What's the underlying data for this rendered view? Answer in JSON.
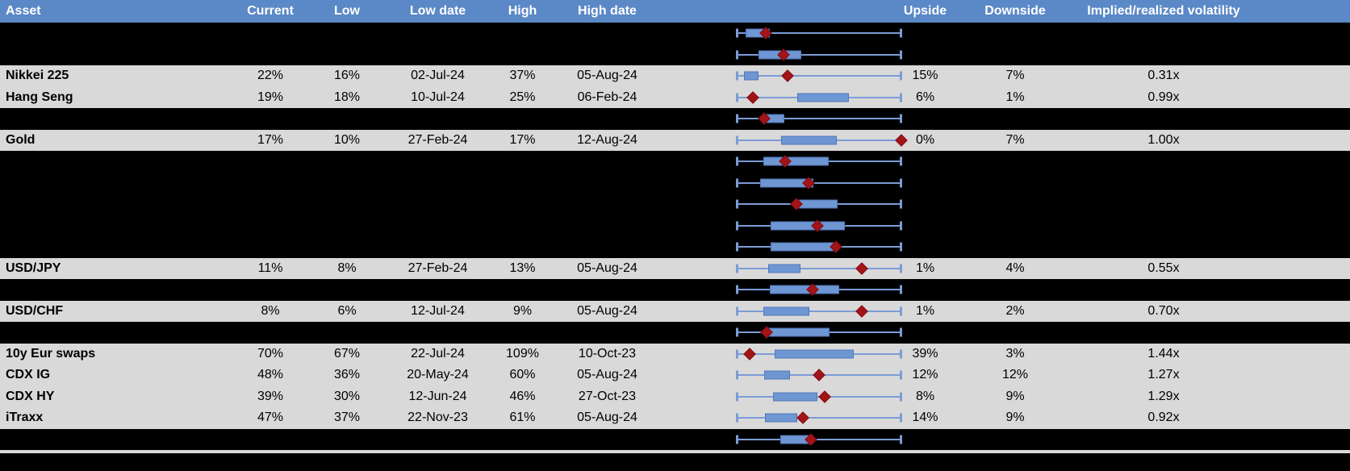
{
  "columns": {
    "asset": "Asset",
    "current": "Current",
    "low": "Low",
    "low_date": "Low date",
    "high": "High",
    "high_date": "High date",
    "upside": "Upside",
    "downside": "Downside",
    "ratio": "Implied/realized volatility"
  },
  "colors": {
    "header_bg": "#5B88C6",
    "header_text": "#FFFFFF",
    "row_gray": "#D9D9D9",
    "row_black": "#000000",
    "box_fill": "#6E96D3",
    "whisker": "#7B9CD6",
    "diamond": "#A31419"
  },
  "chart_data": {
    "type": "table",
    "columns": [
      "Asset",
      "Current",
      "Low",
      "Low date",
      "High",
      "High date",
      "range boxplot",
      "Upside",
      "Downside",
      "Implied/realized volatility"
    ],
    "boxplot_note": "box and diamond positions are fractions 0-1 of each row's low-to-high whisker span; diamond = current level",
    "rows": [
      {
        "kind": "chart",
        "box": [
          0.055,
          0.201
        ],
        "diamond": 0.176
      },
      {
        "kind": "chart",
        "box": [
          0.132,
          0.394
        ],
        "diamond": 0.284
      },
      {
        "kind": "data",
        "asset": "Nikkei 225",
        "current": "22%",
        "low": "16%",
        "low_date": "02-Jul-24",
        "high": "37%",
        "high_date": "05-Aug-24",
        "upside": "15%",
        "downside": "7%",
        "ratio": "0.31x",
        "box": [
          0.043,
          0.132
        ],
        "diamond": 0.307
      },
      {
        "kind": "data",
        "asset": "Hang Seng",
        "current": "19%",
        "low": "18%",
        "low_date": "10-Jul-24",
        "high": "25%",
        "high_date": "06-Feb-24",
        "upside": "6%",
        "downside": "1%",
        "ratio": "0.99x",
        "box": [
          0.369,
          0.68
        ],
        "diamond": 0.097
      },
      {
        "kind": "chart",
        "box": [
          0.165,
          0.288
        ],
        "diamond": 0.165
      },
      {
        "kind": "data",
        "asset": "Gold",
        "current": "17%",
        "low": "10%",
        "low_date": "27-Feb-24",
        "high": "17%",
        "high_date": "12-Aug-24",
        "upside": "0%",
        "downside": "7%",
        "ratio": "1.00x",
        "box": [
          0.271,
          0.606
        ],
        "diamond": 1.0
      },
      {
        "kind": "chart",
        "box": [
          0.16,
          0.557
        ],
        "diamond": 0.293
      },
      {
        "kind": "chart",
        "box": [
          0.141,
          0.467
        ],
        "diamond": 0.435
      },
      {
        "kind": "chart",
        "box": [
          0.378,
          0.611
        ],
        "diamond": 0.364
      },
      {
        "kind": "chart",
        "box": [
          0.206,
          0.655
        ],
        "diamond": 0.492
      },
      {
        "kind": "chart",
        "box": [
          0.206,
          0.614
        ],
        "diamond": 0.603
      },
      {
        "kind": "data",
        "asset": "USD/JPY",
        "current": "11%",
        "low": "8%",
        "low_date": "27-Feb-24",
        "high": "13%",
        "high_date": "05-Aug-24",
        "upside": "1%",
        "downside": "4%",
        "ratio": "0.55x",
        "box": [
          0.19,
          0.386
        ],
        "diamond": 0.761
      },
      {
        "kind": "chart",
        "box": [
          0.201,
          0.623
        ],
        "diamond": 0.462
      },
      {
        "kind": "data",
        "asset": "USD/CHF",
        "current": "8%",
        "low": "6%",
        "low_date": "12-Jul-24",
        "high": "9%",
        "high_date": "05-Aug-24",
        "upside": "1%",
        "downside": "2%",
        "ratio": "0.70x",
        "box": [
          0.16,
          0.443
        ],
        "diamond": 0.761
      },
      {
        "kind": "chart",
        "box": [
          0.181,
          0.562
        ],
        "diamond": 0.181
      },
      {
        "kind": "data",
        "asset": "10y Eur swaps",
        "current": "70%",
        "low": "67%",
        "low_date": "22-Jul-24",
        "high": "109%",
        "high_date": "10-Oct-23",
        "upside": "39%",
        "downside": "3%",
        "ratio": "1.44x",
        "box": [
          0.23,
          0.709
        ],
        "diamond": 0.08
      },
      {
        "kind": "data",
        "asset": "CDX IG",
        "current": "48%",
        "low": "36%",
        "low_date": "20-May-24",
        "high": "60%",
        "high_date": "05-Aug-24",
        "upside": "12%",
        "downside": "12%",
        "ratio": "1.27x",
        "box": [
          0.165,
          0.325
        ],
        "diamond": 0.5
      },
      {
        "kind": "data",
        "asset": "CDX HY",
        "current": "39%",
        "low": "30%",
        "low_date": "12-Jun-24",
        "high": "46%",
        "high_date": "27-Oct-23",
        "upside": "8%",
        "downside": "9%",
        "ratio": "1.29x",
        "box": [
          0.222,
          0.492
        ],
        "diamond": 0.533
      },
      {
        "kind": "data",
        "asset": "iTraxx",
        "current": "47%",
        "low": "37%",
        "low_date": "22-Nov-23",
        "high": "61%",
        "high_date": "05-Aug-24",
        "upside": "14%",
        "downside": "9%",
        "ratio": "0.92x",
        "box": [
          0.173,
          0.369
        ],
        "diamond": 0.402
      },
      {
        "kind": "chart",
        "box": [
          0.263,
          0.443
        ],
        "diamond": 0.451
      }
    ]
  }
}
